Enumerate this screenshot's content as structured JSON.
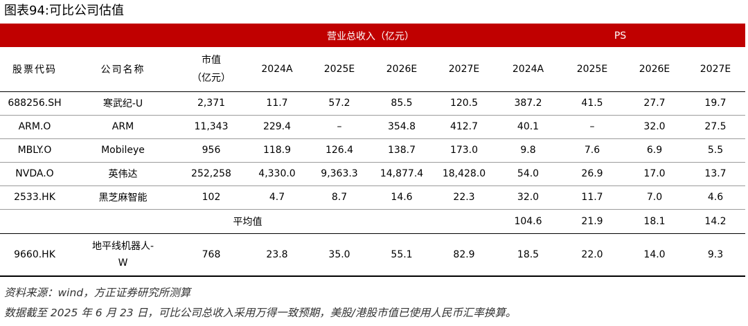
{
  "title": "图表94:可比公司估值",
  "groups": {
    "revenue": "营业总收入（亿元）",
    "ps": "PS"
  },
  "columns": {
    "code": "股票代码",
    "name": "公司名称",
    "mcap_line1": "市值",
    "mcap_line2": "（亿元）",
    "years": [
      "2024A",
      "2025E",
      "2026E",
      "2027E",
      "2024A",
      "2025E",
      "2026E",
      "2027E"
    ]
  },
  "rows": [
    {
      "code": "688256.SH",
      "name": "寒武纪-U",
      "mcap": "2,371",
      "values": [
        "11.7",
        "57.2",
        "85.5",
        "120.5",
        "387.2",
        "41.5",
        "27.7",
        "19.7"
      ]
    },
    {
      "code": "ARM.O",
      "name": "ARM",
      "mcap": "11,343",
      "values": [
        "229.4",
        "–",
        "354.8",
        "412.7",
        "40.1",
        "–",
        "32.0",
        "27.5"
      ]
    },
    {
      "code": "MBLY.O",
      "name": "Mobileye",
      "mcap": "956",
      "values": [
        "118.9",
        "126.4",
        "138.7",
        "173.0",
        "9.8",
        "7.6",
        "6.9",
        "5.5"
      ]
    },
    {
      "code": "NVDA.O",
      "name": "英伟达",
      "mcap": "252,258",
      "values": [
        "4,330.0",
        "9,363.3",
        "14,877.4",
        "18,428.0",
        "54.0",
        "26.9",
        "17.0",
        "13.7"
      ]
    },
    {
      "code": "2533.HK",
      "name": "黑芝麻智能",
      "mcap": "102",
      "values": [
        "4.7",
        "8.7",
        "14.6",
        "22.3",
        "32.0",
        "11.7",
        "7.0",
        "4.6"
      ]
    }
  ],
  "average": {
    "label": "平均值",
    "values": [
      "104.6",
      "21.9",
      "18.1",
      "14.2"
    ]
  },
  "target": {
    "code": "9660.HK",
    "name_line1": "地平线机器人-",
    "name_line2": "W",
    "mcap": "768",
    "values": [
      "23.8",
      "35.0",
      "55.1",
      "82.9",
      "18.5",
      "22.0",
      "14.0",
      "9.3"
    ]
  },
  "source_line1": "资料来源：wind，方正证券研究所测算",
  "source_line2": "数据截至 2025 年 6 月 23 日，可比公司总收入采用万得一致预期，美股/港股市值已使用人民币汇率换算。"
}
